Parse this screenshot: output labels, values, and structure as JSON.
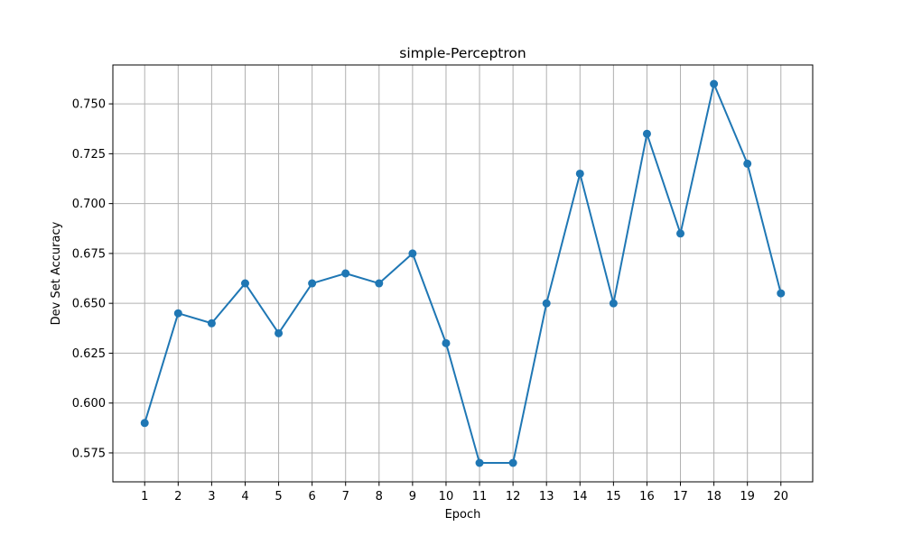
{
  "chart_data": {
    "type": "line",
    "title": "simple-Perceptron",
    "xlabel": "Epoch",
    "ylabel": "Dev Set Accuracy",
    "x": [
      1,
      2,
      3,
      4,
      5,
      6,
      7,
      8,
      9,
      10,
      11,
      12,
      13,
      14,
      15,
      16,
      17,
      18,
      19,
      20
    ],
    "series": [
      {
        "values": [
          0.59,
          0.645,
          0.64,
          0.66,
          0.635,
          0.66,
          0.665,
          0.66,
          0.675,
          0.63,
          0.57,
          0.57,
          0.65,
          0.715,
          0.65,
          0.735,
          0.685,
          0.76,
          0.72,
          0.655
        ],
        "color": "#1f77b4",
        "marker": "circle"
      }
    ],
    "xlim": [
      0.05,
      20.95
    ],
    "ylim": [
      0.5605,
      0.7695
    ],
    "xticks": [
      "1",
      "2",
      "3",
      "4",
      "5",
      "6",
      "7",
      "8",
      "9",
      "10",
      "11",
      "12",
      "13",
      "14",
      "15",
      "16",
      "17",
      "18",
      "19",
      "20"
    ],
    "yticks": [
      "0.575",
      "0.600",
      "0.625",
      "0.650",
      "0.675",
      "0.700",
      "0.725",
      "0.750"
    ],
    "grid": true,
    "legend": "none"
  }
}
